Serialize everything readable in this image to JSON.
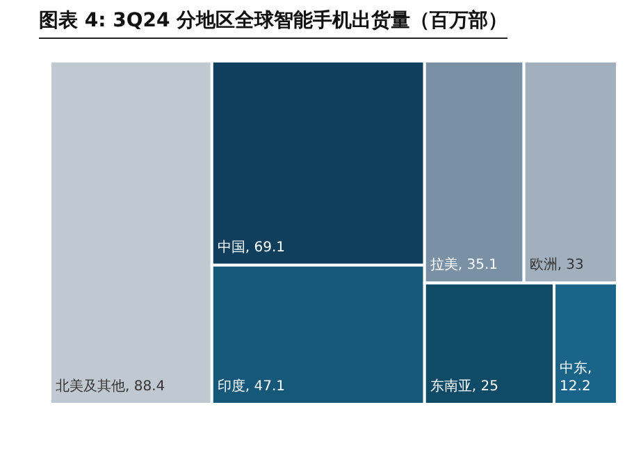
{
  "chart_data": {
    "type": "other",
    "title": "图表 4: 3Q24  分地区全球智能手机出货量（百万部）",
    "categories": [
      "北美及其他",
      "中国",
      "印度",
      "拉美",
      "欧洲",
      "东南亚",
      "中东"
    ],
    "values": [
      88.4,
      69.1,
      47.1,
      35.1,
      33,
      25,
      12.2
    ],
    "colors": [
      "#c0c8d1",
      "#0f3f5c",
      "#16587a",
      "#7a91a5",
      "#a2b0bd",
      "#0f4a67",
      "#1a6489"
    ],
    "value_labels": [
      ", 88.4",
      ", 69.1",
      ", 47.1",
      ", 35.1",
      ", 33",
      ", 25",
      ", 12.2"
    ]
  }
}
